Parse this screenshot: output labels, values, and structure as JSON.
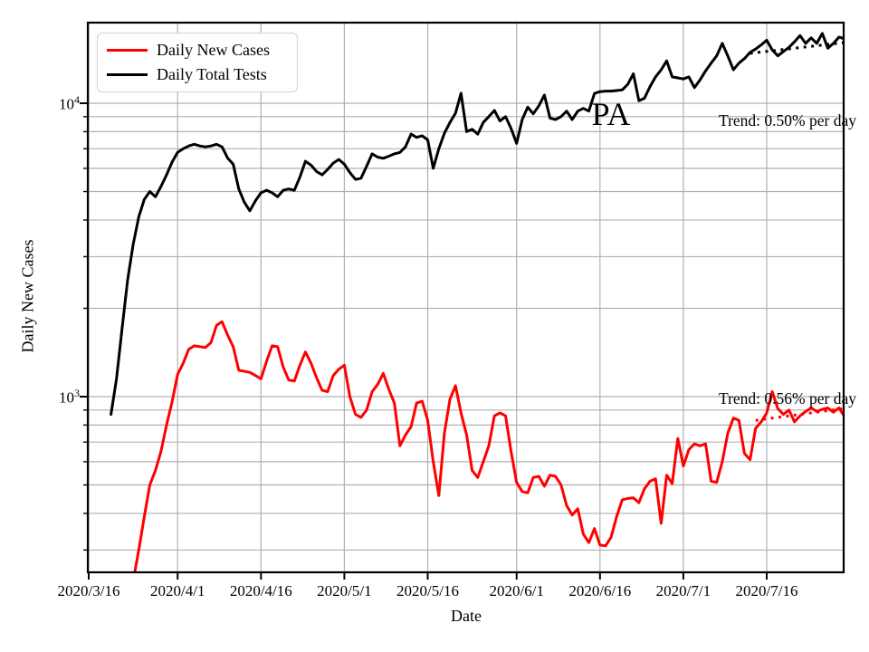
{
  "chart_data": {
    "type": "line",
    "title": "",
    "xlabel": "Date",
    "ylabel": "Daily New Cases",
    "yscale": "log",
    "grid": true,
    "grid_color": "#b0b0b0",
    "x_axis": {
      "unit": "days since 2020/3/16",
      "range_days": [
        -0.2,
        135.9
      ],
      "ticks": [
        {
          "day": 0,
          "label": "2020/3/16"
        },
        {
          "day": 16,
          "label": "2020/4/1"
        },
        {
          "day": 31,
          "label": "2020/4/16"
        },
        {
          "day": 46,
          "label": "2020/5/1"
        },
        {
          "day": 61,
          "label": "2020/5/16"
        },
        {
          "day": 77,
          "label": "2020/6/1"
        },
        {
          "day": 92,
          "label": "2020/6/16"
        },
        {
          "day": 107,
          "label": "2020/7/1"
        },
        {
          "day": 122,
          "label": "2020/7/16"
        }
      ]
    },
    "y_axis": {
      "range": [
        252,
        18800
      ],
      "major_ticks": [
        {
          "value": 1000,
          "base": "10",
          "exponent": "3"
        },
        {
          "value": 10000,
          "base": "10",
          "exponent": "4"
        }
      ],
      "minor_tick_values": [
        300,
        400,
        500,
        600,
        700,
        800,
        900,
        2000,
        3000,
        4000,
        5000,
        6000,
        7000,
        8000,
        9000,
        20000
      ]
    },
    "legend": {
      "position": "upper-left",
      "items": [
        {
          "label": "Daily New Cases",
          "color": "#ff0000"
        },
        {
          "label": "Daily Total Tests",
          "color": "#000000"
        }
      ]
    },
    "series": [
      {
        "name": "Daily New Cases",
        "color": "#ff0000",
        "start_day": 8,
        "values": [
          235,
          300,
          390,
          500,
          560,
          650,
          800,
          960,
          1190,
          1300,
          1450,
          1490,
          1480,
          1470,
          1530,
          1750,
          1800,
          1620,
          1480,
          1230,
          1220,
          1210,
          1180,
          1150,
          1320,
          1490,
          1480,
          1260,
          1140,
          1130,
          1280,
          1420,
          1300,
          1160,
          1050,
          1040,
          1180,
          1240,
          1280,
          1000,
          870,
          850,
          900,
          1040,
          1100,
          1200,
          1060,
          950,
          680,
          740,
          790,
          950,
          965,
          830,
          600,
          460,
          750,
          980,
          1090,
          880,
          740,
          560,
          530,
          600,
          680,
          860,
          880,
          860,
          650,
          510,
          475,
          470,
          530,
          535,
          495,
          540,
          535,
          500,
          425,
          395,
          415,
          340,
          318,
          355,
          312,
          310,
          332,
          390,
          445,
          450,
          452,
          435,
          485,
          515,
          525,
          370,
          540,
          505,
          720,
          580,
          660,
          690,
          680,
          690,
          515,
          510,
          600,
          750,
          845,
          830,
          640,
          610,
          780,
          820,
          880,
          1040,
          910,
          870,
          900,
          820,
          860,
          890,
          915,
          890,
          905,
          915,
          885,
          915,
          855
        ]
      },
      {
        "name": "Daily Total Tests",
        "color": "#000000",
        "start_day": 4,
        "values": [
          870,
          1150,
          1700,
          2500,
          3300,
          4100,
          4700,
          5000,
          4800,
          5200,
          5700,
          6300,
          6800,
          7000,
          7150,
          7250,
          7150,
          7100,
          7150,
          7250,
          7100,
          6500,
          6200,
          5100,
          4600,
          4300,
          4650,
          4950,
          5050,
          4950,
          4800,
          5050,
          5100,
          5050,
          5600,
          6340,
          6150,
          5850,
          5700,
          5950,
          6250,
          6430,
          6200,
          5800,
          5500,
          5550,
          6100,
          6720,
          6550,
          6490,
          6600,
          6720,
          6800,
          7100,
          7850,
          7650,
          7750,
          7500,
          6000,
          7000,
          7900,
          8600,
          9250,
          10810,
          8000,
          8150,
          7850,
          8600,
          9000,
          9450,
          8700,
          9000,
          8200,
          7300,
          8800,
          9700,
          9200,
          9800,
          10660,
          8900,
          8800,
          9000,
          9400,
          8800,
          9400,
          9600,
          9400,
          10800,
          10950,
          11000,
          11000,
          11050,
          11100,
          11600,
          12600,
          10200,
          10400,
          11400,
          12300,
          13000,
          13950,
          12300,
          12200,
          12100,
          12300,
          11300,
          12000,
          12900,
          13700,
          14500,
          16000,
          14500,
          13000,
          13700,
          14200,
          14900,
          15300,
          15800,
          16400,
          15200,
          14500,
          15000,
          15500,
          16200,
          17000,
          16000,
          16700,
          16000,
          17300,
          15400,
          16000,
          16800,
          16600
        ]
      }
    ],
    "trend_lines": [
      {
        "for_series": "Daily Total Tests",
        "label": "Trend: 0.50% per day",
        "color": "#000000",
        "days": [
          119,
          136
        ],
        "values": [
          14800,
          16100
        ]
      },
      {
        "for_series": "Daily New Cases",
        "label": "Trend: 0.56% per day",
        "color": "#ff0000",
        "days": [
          120,
          136
        ],
        "values": [
          830,
          912
        ]
      }
    ],
    "annotations": [
      {
        "text": "PA",
        "day": 94,
        "value": 9300
      }
    ]
  }
}
